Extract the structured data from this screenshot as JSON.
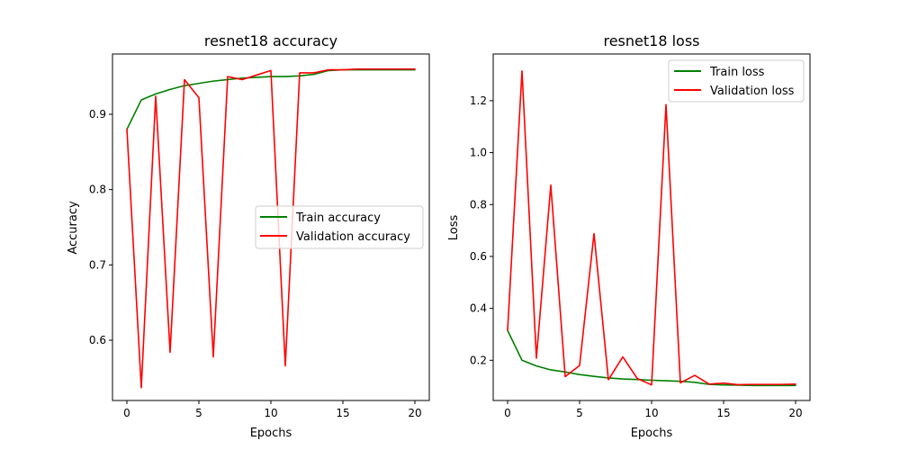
{
  "chart_data": [
    {
      "type": "line",
      "title": "resnet18 accuracy",
      "xlabel": "Epochs",
      "ylabel": "Accuracy",
      "xlim": [
        -1,
        21
      ],
      "ylim": [
        0.52,
        0.98
      ],
      "xticks": [
        0,
        5,
        10,
        15,
        20
      ],
      "yticks": [
        0.6,
        0.7,
        0.8,
        0.9
      ],
      "ytick_labels": [
        "0.6",
        "0.7",
        "0.8",
        "0.9"
      ],
      "grid": false,
      "legend_position": "center-right",
      "x": [
        0,
        1,
        2,
        3,
        4,
        5,
        6,
        7,
        8,
        9,
        10,
        11,
        12,
        13,
        14,
        15,
        16,
        17,
        18,
        19,
        20
      ],
      "series": [
        {
          "name": "Train accuracy",
          "color": "#008000",
          "values": [
            0.88,
            0.919,
            0.927,
            0.933,
            0.938,
            0.941,
            0.944,
            0.946,
            0.948,
            0.949,
            0.95,
            0.95,
            0.951,
            0.953,
            0.958,
            0.959,
            0.959,
            0.959,
            0.959,
            0.959,
            0.959
          ]
        },
        {
          "name": "Validation accuracy",
          "color": "#ff0000",
          "values": [
            0.88,
            0.537,
            0.924,
            0.584,
            0.946,
            0.922,
            0.578,
            0.95,
            0.946,
            0.952,
            0.958,
            0.566,
            0.955,
            0.955,
            0.959,
            0.959,
            0.96,
            0.96,
            0.96,
            0.96,
            0.96
          ]
        }
      ]
    },
    {
      "type": "line",
      "title": "resnet18 loss",
      "xlabel": "Epochs",
      "ylabel": "Loss",
      "xlim": [
        -1,
        21
      ],
      "ylim": [
        0.045,
        1.38
      ],
      "xticks": [
        0,
        5,
        10,
        15,
        20
      ],
      "yticks": [
        0.2,
        0.4,
        0.6,
        0.8,
        1.0,
        1.2
      ],
      "ytick_labels": [
        "0.2",
        "0.4",
        "0.6",
        "0.8",
        "1.0",
        "1.2"
      ],
      "grid": false,
      "legend_position": "top-right",
      "x": [
        0,
        1,
        2,
        3,
        4,
        5,
        6,
        7,
        8,
        9,
        10,
        11,
        12,
        13,
        14,
        15,
        16,
        17,
        18,
        19,
        20
      ],
      "series": [
        {
          "name": "Train loss",
          "color": "#008000",
          "values": [
            0.315,
            0.2,
            0.178,
            0.163,
            0.155,
            0.145,
            0.138,
            0.132,
            0.128,
            0.126,
            0.123,
            0.121,
            0.119,
            0.115,
            0.107,
            0.105,
            0.104,
            0.103,
            0.103,
            0.103,
            0.103
          ]
        },
        {
          "name": "Validation loss",
          "color": "#ff0000",
          "values": [
            0.315,
            1.315,
            0.208,
            0.875,
            0.137,
            0.18,
            0.688,
            0.125,
            0.213,
            0.13,
            0.105,
            1.185,
            0.113,
            0.142,
            0.108,
            0.112,
            0.106,
            0.107,
            0.107,
            0.107,
            0.108
          ]
        }
      ]
    }
  ]
}
